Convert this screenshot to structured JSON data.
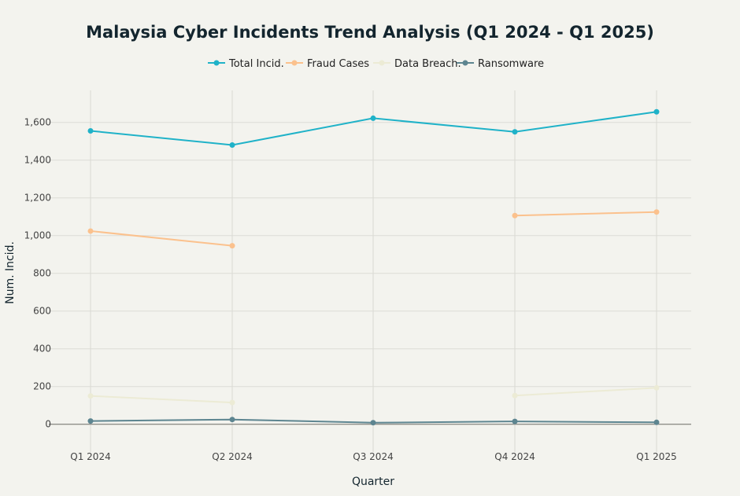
{
  "chart_data": {
    "type": "line",
    "title": "Malaysia Cyber Incidents Trend Analysis (Q1 2024 - Q1 2025)",
    "xlabel": "Quarter",
    "ylabel": "Num. Incid.",
    "categories": [
      "Q1 2024",
      "Q2 2024",
      "Q3 2024",
      "Q4 2024",
      "Q1 2025"
    ],
    "ylim": [
      -100,
      1720
    ],
    "yticks": [
      0,
      200,
      400,
      600,
      800,
      1000,
      1200,
      1400,
      1600
    ],
    "ytick_labels": [
      "0",
      "200",
      "400",
      "600",
      "800",
      "1,000",
      "1,200",
      "1,400",
      "1,600"
    ],
    "grid": true,
    "legend_position": "top-center",
    "series": [
      {
        "name": "Total Incid.",
        "color": "#1fb2c8",
        "values": [
          1555,
          1480,
          1622,
          1550,
          1656
        ]
      },
      {
        "name": "Fraud Cases",
        "color": "#fbc18d",
        "values": [
          1024,
          946,
          null,
          1106,
          1125
        ]
      },
      {
        "name": "Data Breach.",
        "color": "#ecebd5",
        "values": [
          150,
          115,
          null,
          152,
          193
        ]
      },
      {
        "name": "Ransomware",
        "color": "#5d8590",
        "values": [
          17,
          25,
          8,
          15,
          10
        ]
      }
    ]
  }
}
